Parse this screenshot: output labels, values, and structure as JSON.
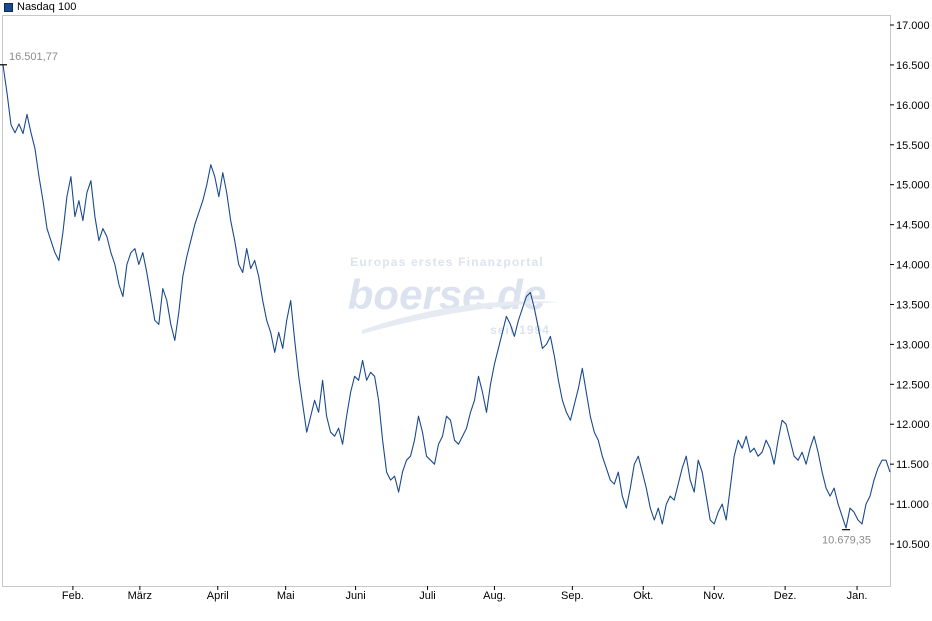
{
  "legend": {
    "label": "Nasdaq 100",
    "color": "#1a4a8e"
  },
  "watermark": {
    "top": "Europas erstes Finanzportal",
    "brand": "boerse.de",
    "bottom": "seit 1994"
  },
  "chart_data": {
    "type": "line",
    "title": "",
    "xlabel": "",
    "ylabel": "",
    "series": [
      {
        "name": "Nasdaq 100",
        "color": "#1a4a8e",
        "points": [
          [
            0,
            16500
          ],
          [
            0.4,
            16150
          ],
          [
            0.8,
            15750
          ],
          [
            1.2,
            15650
          ],
          [
            1.6,
            15760
          ],
          [
            2.0,
            15640
          ],
          [
            2.4,
            15880
          ],
          [
            2.8,
            15650
          ],
          [
            3.2,
            15450
          ],
          [
            3.6,
            15100
          ],
          [
            4.0,
            14800
          ],
          [
            4.4,
            14450
          ],
          [
            4.8,
            14300
          ],
          [
            5.2,
            14150
          ],
          [
            5.6,
            14050
          ],
          [
            6.0,
            14400
          ],
          [
            6.4,
            14850
          ],
          [
            6.8,
            15100
          ],
          [
            7.2,
            14600
          ],
          [
            7.6,
            14800
          ],
          [
            8.0,
            14550
          ],
          [
            8.4,
            14900
          ],
          [
            8.8,
            15050
          ],
          [
            9.2,
            14600
          ],
          [
            9.6,
            14300
          ],
          [
            10.0,
            14450
          ],
          [
            10.4,
            14350
          ],
          [
            10.8,
            14150
          ],
          [
            11.2,
            14000
          ],
          [
            11.6,
            13750
          ],
          [
            12.0,
            13600
          ],
          [
            12.4,
            14000
          ],
          [
            12.8,
            14150
          ],
          [
            13.2,
            14200
          ],
          [
            13.6,
            14000
          ],
          [
            14.0,
            14150
          ],
          [
            14.4,
            13900
          ],
          [
            14.8,
            13600
          ],
          [
            15.2,
            13300
          ],
          [
            15.6,
            13250
          ],
          [
            16.0,
            13700
          ],
          [
            16.4,
            13550
          ],
          [
            16.8,
            13250
          ],
          [
            17.2,
            13050
          ],
          [
            17.6,
            13400
          ],
          [
            18.0,
            13850
          ],
          [
            18.4,
            14100
          ],
          [
            18.8,
            14300
          ],
          [
            19.2,
            14500
          ],
          [
            19.6,
            14650
          ],
          [
            20.0,
            14800
          ],
          [
            20.4,
            15000
          ],
          [
            20.8,
            15250
          ],
          [
            21.2,
            15100
          ],
          [
            21.6,
            14850
          ],
          [
            22.0,
            15150
          ],
          [
            22.4,
            14900
          ],
          [
            22.8,
            14550
          ],
          [
            23.2,
            14300
          ],
          [
            23.6,
            14000
          ],
          [
            24.0,
            13900
          ],
          [
            24.4,
            14200
          ],
          [
            24.8,
            13950
          ],
          [
            25.2,
            14050
          ],
          [
            25.6,
            13850
          ],
          [
            26.0,
            13550
          ],
          [
            26.4,
            13300
          ],
          [
            26.8,
            13150
          ],
          [
            27.2,
            12900
          ],
          [
            27.6,
            13150
          ],
          [
            28.0,
            12950
          ],
          [
            28.4,
            13300
          ],
          [
            28.8,
            13550
          ],
          [
            29.2,
            13050
          ],
          [
            29.6,
            12600
          ],
          [
            30.0,
            12250
          ],
          [
            30.4,
            11900
          ],
          [
            30.8,
            12100
          ],
          [
            31.2,
            12300
          ],
          [
            31.6,
            12150
          ],
          [
            32.0,
            12550
          ],
          [
            32.4,
            12100
          ],
          [
            32.8,
            11900
          ],
          [
            33.2,
            11850
          ],
          [
            33.6,
            11950
          ],
          [
            34.0,
            11750
          ],
          [
            34.4,
            12100
          ],
          [
            34.8,
            12400
          ],
          [
            35.2,
            12600
          ],
          [
            35.6,
            12550
          ],
          [
            36.0,
            12800
          ],
          [
            36.4,
            12550
          ],
          [
            36.8,
            12650
          ],
          [
            37.2,
            12600
          ],
          [
            37.6,
            12300
          ],
          [
            38.0,
            11800
          ],
          [
            38.4,
            11400
          ],
          [
            38.8,
            11300
          ],
          [
            39.2,
            11350
          ],
          [
            39.6,
            11150
          ],
          [
            40.0,
            11400
          ],
          [
            40.4,
            11550
          ],
          [
            40.8,
            11600
          ],
          [
            41.2,
            11800
          ],
          [
            41.6,
            12100
          ],
          [
            42.0,
            11900
          ],
          [
            42.4,
            11600
          ],
          [
            42.8,
            11550
          ],
          [
            43.2,
            11500
          ],
          [
            43.6,
            11750
          ],
          [
            44.0,
            11850
          ],
          [
            44.4,
            12100
          ],
          [
            44.8,
            12050
          ],
          [
            45.2,
            11800
          ],
          [
            45.6,
            11750
          ],
          [
            46.0,
            11850
          ],
          [
            46.4,
            11950
          ],
          [
            46.8,
            12150
          ],
          [
            47.2,
            12300
          ],
          [
            47.6,
            12600
          ],
          [
            48.0,
            12400
          ],
          [
            48.4,
            12150
          ],
          [
            48.8,
            12500
          ],
          [
            49.2,
            12750
          ],
          [
            49.6,
            12950
          ],
          [
            50.0,
            13150
          ],
          [
            50.4,
            13350
          ],
          [
            50.8,
            13250
          ],
          [
            51.2,
            13100
          ],
          [
            51.6,
            13300
          ],
          [
            52.0,
            13450
          ],
          [
            52.4,
            13600
          ],
          [
            52.8,
            13650
          ],
          [
            53.2,
            13450
          ],
          [
            53.6,
            13200
          ],
          [
            54.0,
            12950
          ],
          [
            54.4,
            13000
          ],
          [
            54.8,
            13100
          ],
          [
            55.2,
            12850
          ],
          [
            55.6,
            12550
          ],
          [
            56.0,
            12300
          ],
          [
            56.4,
            12150
          ],
          [
            56.8,
            12050
          ],
          [
            57.2,
            12250
          ],
          [
            57.6,
            12450
          ],
          [
            58.0,
            12700
          ],
          [
            58.4,
            12400
          ],
          [
            58.8,
            12100
          ],
          [
            59.2,
            11900
          ],
          [
            59.6,
            11800
          ],
          [
            60.0,
            11600
          ],
          [
            60.4,
            11450
          ],
          [
            60.8,
            11300
          ],
          [
            61.2,
            11250
          ],
          [
            61.6,
            11400
          ],
          [
            62.0,
            11100
          ],
          [
            62.4,
            10950
          ],
          [
            62.8,
            11200
          ],
          [
            63.2,
            11500
          ],
          [
            63.6,
            11600
          ],
          [
            64.0,
            11400
          ],
          [
            64.4,
            11200
          ],
          [
            64.8,
            10950
          ],
          [
            65.2,
            10800
          ],
          [
            65.6,
            10950
          ],
          [
            66.0,
            10750
          ],
          [
            66.4,
            11000
          ],
          [
            66.8,
            11100
          ],
          [
            67.2,
            11050
          ],
          [
            67.6,
            11250
          ],
          [
            68.0,
            11450
          ],
          [
            68.4,
            11600
          ],
          [
            68.8,
            11300
          ],
          [
            69.2,
            11150
          ],
          [
            69.6,
            11550
          ],
          [
            70.0,
            11400
          ],
          [
            70.4,
            11100
          ],
          [
            70.8,
            10800
          ],
          [
            71.2,
            10750
          ],
          [
            71.6,
            10900
          ],
          [
            72.0,
            11000
          ],
          [
            72.4,
            10800
          ],
          [
            72.8,
            11200
          ],
          [
            73.2,
            11600
          ],
          [
            73.6,
            11800
          ],
          [
            74.0,
            11700
          ],
          [
            74.4,
            11850
          ],
          [
            74.8,
            11650
          ],
          [
            75.2,
            11700
          ],
          [
            75.6,
            11600
          ],
          [
            76.0,
            11650
          ],
          [
            76.4,
            11800
          ],
          [
            76.8,
            11700
          ],
          [
            77.2,
            11500
          ],
          [
            77.6,
            11800
          ],
          [
            78.0,
            12050
          ],
          [
            78.4,
            12000
          ],
          [
            78.8,
            11800
          ],
          [
            79.2,
            11600
          ],
          [
            79.6,
            11550
          ],
          [
            80.0,
            11650
          ],
          [
            80.4,
            11500
          ],
          [
            80.8,
            11700
          ],
          [
            81.2,
            11850
          ],
          [
            81.6,
            11650
          ],
          [
            82.0,
            11400
          ],
          [
            82.4,
            11200
          ],
          [
            82.8,
            11100
          ],
          [
            83.2,
            11200
          ],
          [
            83.6,
            11000
          ],
          [
            84.0,
            10850
          ],
          [
            84.4,
            10700
          ],
          [
            84.8,
            10950
          ],
          [
            85.2,
            10900
          ],
          [
            85.6,
            10800
          ],
          [
            86.0,
            10750
          ],
          [
            86.4,
            11000
          ],
          [
            86.8,
            11100
          ],
          [
            87.2,
            11300
          ],
          [
            87.6,
            11450
          ],
          [
            88.0,
            11550
          ],
          [
            88.4,
            11550
          ],
          [
            88.8,
            11400
          ]
        ],
        "period_labels": [
          "Feb.",
          "März",
          "April",
          "Mai",
          "Juni",
          "Juli",
          "Aug.",
          "Sep.",
          "Okt.",
          "Nov.",
          "Dez.",
          "Jan."
        ]
      }
    ],
    "x_ticks": [
      {
        "label": "Feb.",
        "at": 7
      },
      {
        "label": "März",
        "at": 13.7
      },
      {
        "label": "April",
        "at": 21.5
      },
      {
        "label": "Mai",
        "at": 28.3
      },
      {
        "label": "Juni",
        "at": 35.3
      },
      {
        "label": "Juli",
        "at": 42.5
      },
      {
        "label": "Aug.",
        "at": 49.2
      },
      {
        "label": "Sep.",
        "at": 57
      },
      {
        "label": "Okt.",
        "at": 64.1
      },
      {
        "label": "Nov.",
        "at": 71.2
      },
      {
        "label": "Dez.",
        "at": 78.3
      },
      {
        "label": "Jan.",
        "at": 85.5
      }
    ],
    "y_ticks": [
      {
        "label": "17.000",
        "value": 17000
      },
      {
        "label": "16.500",
        "value": 16500
      },
      {
        "label": "16.000",
        "value": 16000
      },
      {
        "label": "15.500",
        "value": 15500
      },
      {
        "label": "15.000",
        "value": 15000
      },
      {
        "label": "14.500",
        "value": 14500
      },
      {
        "label": "14.000",
        "value": 14000
      },
      {
        "label": "13.500",
        "value": 13500
      },
      {
        "label": "13.000",
        "value": 13000
      },
      {
        "label": "12.500",
        "value": 12500
      },
      {
        "label": "12.000",
        "value": 12000
      },
      {
        "label": "11.500",
        "value": 11500
      },
      {
        "label": "11.000",
        "value": 11000
      },
      {
        "label": "10.500",
        "value": 10500
      }
    ],
    "annotations": [
      {
        "label": "16.501,77",
        "x": 0,
        "y": 16501.77,
        "kind": "max"
      },
      {
        "label": "10.679,35",
        "x": 84.4,
        "y": 10679.35,
        "kind": "min"
      }
    ],
    "xlim": [
      0,
      88.8
    ],
    "ylim": [
      10000,
      17300
    ],
    "grid": false,
    "legend_position": "top-left"
  }
}
